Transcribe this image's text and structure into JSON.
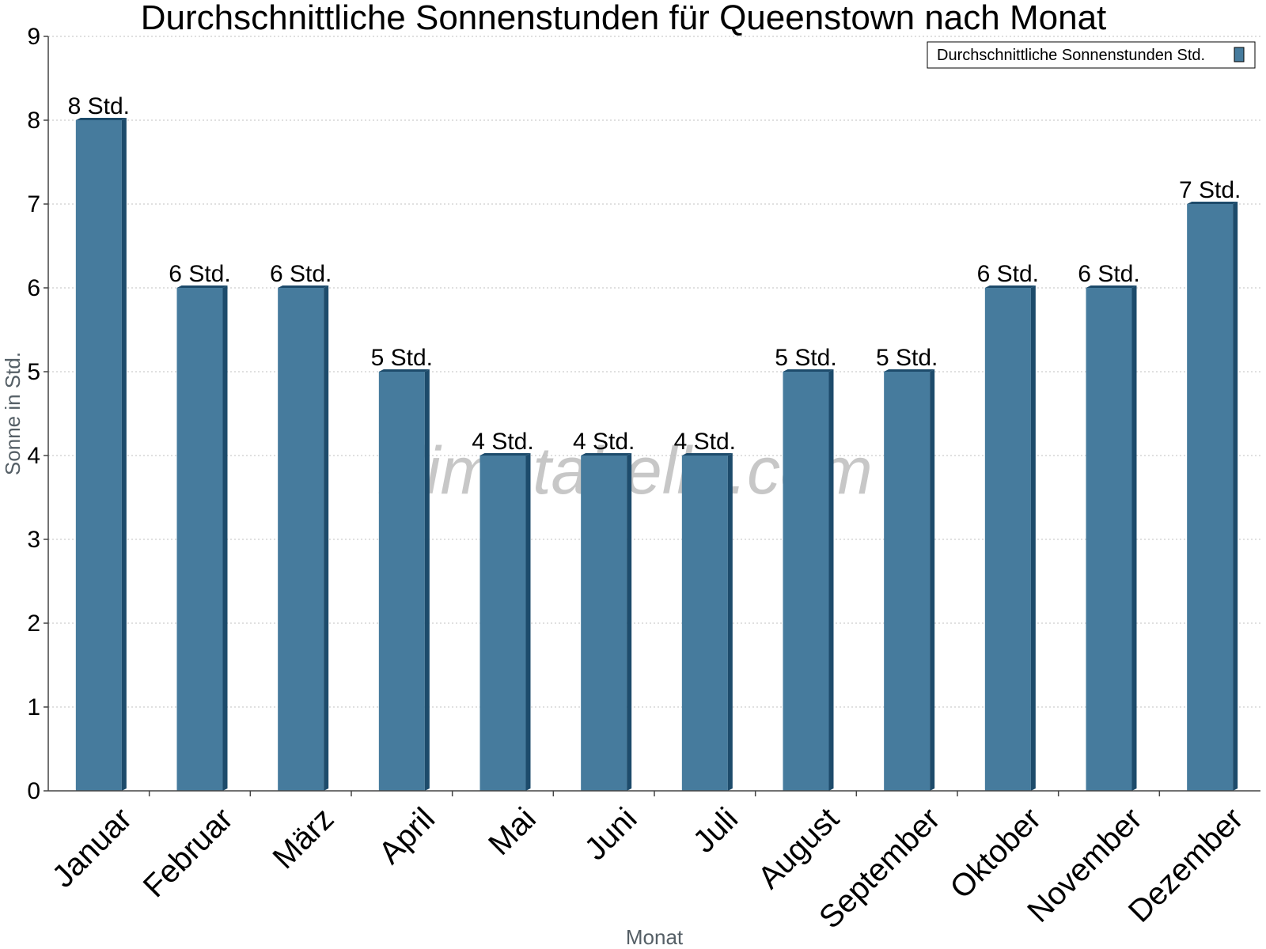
{
  "chart_data": {
    "type": "bar",
    "title": "Durchschnittliche Sonnenstunden für Queenstown nach Monat",
    "xlabel": "Monat",
    "ylabel": "Sonne in Std.",
    "categories": [
      "Januar",
      "Februar",
      "März",
      "April",
      "Mai",
      "Juni",
      "Juli",
      "August",
      "September",
      "Oktober",
      "November",
      "Dezember"
    ],
    "series": [
      {
        "name": "Durchschnittliche Sonnenstunden Std.",
        "values": [
          8,
          6,
          6,
          5,
          4,
          4,
          4,
          5,
          5,
          6,
          6,
          7
        ],
        "data_labels": [
          "8 Std.",
          "6 Std.",
          "6 Std.",
          "5 Std.",
          "4 Std.",
          "4 Std.",
          "4 Std.",
          "5 Std.",
          "5 Std.",
          "6 Std.",
          "6 Std.",
          "7 Std."
        ]
      }
    ],
    "ylim": [
      0,
      9
    ],
    "yticks": [
      0,
      1,
      2,
      3,
      4,
      5,
      6,
      7,
      8,
      9
    ],
    "grid": true,
    "legend_position": "top-right",
    "colors": {
      "bar": "#467b9d",
      "bar_shade": "#1d4b6b",
      "grid": "#c0c0c0",
      "axis": "#444444"
    }
  },
  "watermark": "klimatabelle.com"
}
